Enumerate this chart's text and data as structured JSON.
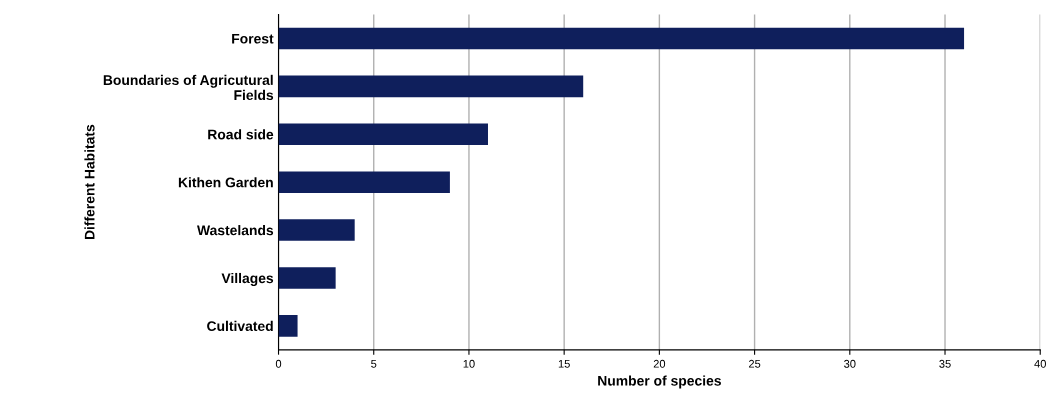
{
  "chart_data": {
    "type": "bar",
    "orientation": "horizontal",
    "xlabel": "Number of species",
    "ylabel": "Different Habitats",
    "categories": [
      "Forest",
      "Boundaries of Agricutural\nFields",
      "Road side",
      "Kithen Garden",
      "Wastelands",
      "Villages",
      "Cultivated"
    ],
    "values": [
      36,
      16,
      11,
      9,
      4,
      3,
      1
    ],
    "color": "#0f1f5c",
    "xlim": [
      0,
      40
    ],
    "xticks": [
      0,
      5,
      10,
      15,
      20,
      25,
      30,
      35,
      40
    ],
    "grid": "x"
  }
}
